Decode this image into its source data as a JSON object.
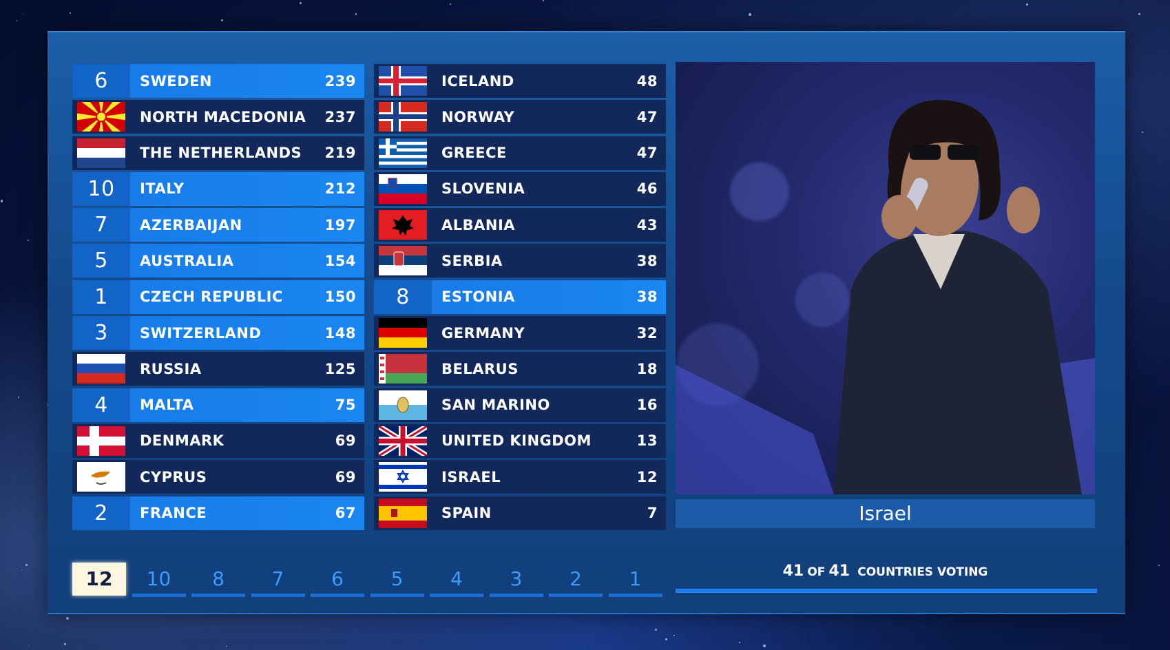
{
  "scoreboard": {
    "left": [
      {
        "badge": "6",
        "country": "SWEDEN",
        "points": "239",
        "flag": "sweden",
        "highlight": true
      },
      {
        "badge": "",
        "country": "NORTH MACEDONIA",
        "points": "237",
        "flag": "north-macedonia",
        "highlight": false
      },
      {
        "badge": "",
        "country": "THE NETHERLANDS",
        "points": "219",
        "flag": "netherlands",
        "highlight": false
      },
      {
        "badge": "10",
        "country": "ITALY",
        "points": "212",
        "flag": "italy",
        "highlight": true
      },
      {
        "badge": "7",
        "country": "AZERBAIJAN",
        "points": "197",
        "flag": "azerbaijan",
        "highlight": true
      },
      {
        "badge": "5",
        "country": "AUSTRALIA",
        "points": "154",
        "flag": "australia",
        "highlight": true
      },
      {
        "badge": "1",
        "country": "CZECH REPUBLIC",
        "points": "150",
        "flag": "czech-republic",
        "highlight": true
      },
      {
        "badge": "3",
        "country": "SWITZERLAND",
        "points": "148",
        "flag": "switzerland",
        "highlight": true
      },
      {
        "badge": "",
        "country": "RUSSIA",
        "points": "125",
        "flag": "russia",
        "highlight": false
      },
      {
        "badge": "4",
        "country": "MALTA",
        "points": "75",
        "flag": "malta",
        "highlight": true
      },
      {
        "badge": "",
        "country": "DENMARK",
        "points": "69",
        "flag": "denmark",
        "highlight": false
      },
      {
        "badge": "",
        "country": "CYPRUS",
        "points": "69",
        "flag": "cyprus",
        "highlight": false
      },
      {
        "badge": "2",
        "country": "FRANCE",
        "points": "67",
        "flag": "france",
        "highlight": true
      }
    ],
    "right": [
      {
        "badge": "",
        "country": "ICELAND",
        "points": "48",
        "flag": "iceland",
        "highlight": false
      },
      {
        "badge": "",
        "country": "NORWAY",
        "points": "47",
        "flag": "norway",
        "highlight": false
      },
      {
        "badge": "",
        "country": "GREECE",
        "points": "47",
        "flag": "greece",
        "highlight": false
      },
      {
        "badge": "",
        "country": "SLOVENIA",
        "points": "46",
        "flag": "slovenia",
        "highlight": false
      },
      {
        "badge": "",
        "country": "ALBANIA",
        "points": "43",
        "flag": "albania",
        "highlight": false
      },
      {
        "badge": "",
        "country": "SERBIA",
        "points": "38",
        "flag": "serbia",
        "highlight": false
      },
      {
        "badge": "8",
        "country": "ESTONIA",
        "points": "38",
        "flag": "estonia",
        "highlight": true
      },
      {
        "badge": "",
        "country": "GERMANY",
        "points": "32",
        "flag": "germany",
        "highlight": false
      },
      {
        "badge": "",
        "country": "BELARUS",
        "points": "18",
        "flag": "belarus",
        "highlight": false
      },
      {
        "badge": "",
        "country": "SAN MARINO",
        "points": "16",
        "flag": "san-marino",
        "highlight": false
      },
      {
        "badge": "",
        "country": "UNITED KINGDOM",
        "points": "13",
        "flag": "united-kingdom",
        "highlight": false
      },
      {
        "badge": "",
        "country": "ISRAEL",
        "points": "12",
        "flag": "israel",
        "highlight": false
      },
      {
        "badge": "",
        "country": "SPAIN",
        "points": "7",
        "flag": "spain",
        "highlight": false
      }
    ]
  },
  "video": {
    "caption": "Israel"
  },
  "points_bar": {
    "values": [
      "12",
      "10",
      "8",
      "7",
      "6",
      "5",
      "4",
      "3",
      "2",
      "1"
    ],
    "active": "12"
  },
  "voting": {
    "current": "41",
    "of_label": "OF",
    "total": "41",
    "label": "COUNTRIES VOTING",
    "progress_fraction": 1.0
  },
  "colors": {
    "highlight": "#1a86f2",
    "row": "#12285a",
    "panel": "#1b5ea8",
    "accent": "#1e7ef0"
  }
}
